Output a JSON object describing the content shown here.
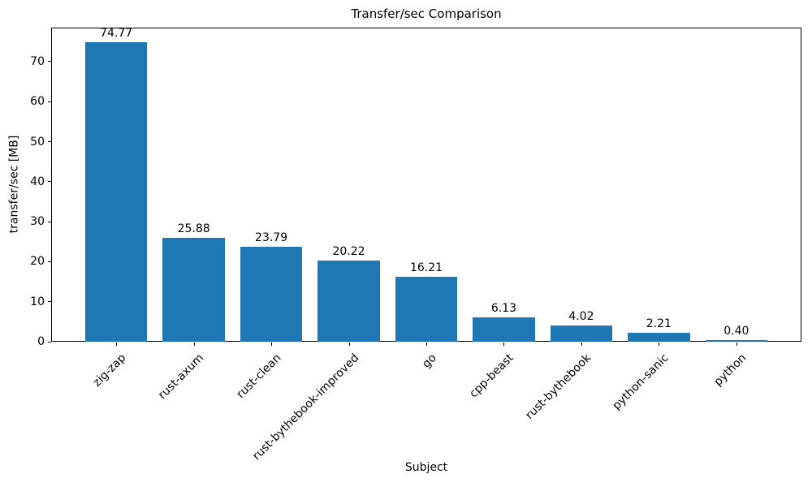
{
  "chart_data": {
    "type": "bar",
    "title": "Transfer/sec Comparison",
    "xlabel": "Subject",
    "ylabel": "transfer/sec [MB]",
    "categories": [
      "zig-zap",
      "rust-axum",
      "rust-clean",
      "rust-bythebook-improved",
      "go",
      "cpp-beast",
      "rust-bythebook",
      "python-sanic",
      "python"
    ],
    "values": [
      74.77,
      25.88,
      23.79,
      20.22,
      16.21,
      6.13,
      4.02,
      2.21,
      0.4
    ],
    "value_labels": [
      "74.77",
      "25.88",
      "23.79",
      "20.22",
      "16.21",
      "6.13",
      "4.02",
      "2.21",
      "0.40"
    ],
    "yticks": [
      0,
      10,
      20,
      30,
      40,
      50,
      60,
      70
    ],
    "ylim": [
      0,
      78.51
    ],
    "xtick_rotation_deg": 45,
    "bar_color": "#1f77b4",
    "axis_color": "#000000",
    "background_color": "#ffffff",
    "grid": false,
    "legend_position": "none"
  }
}
